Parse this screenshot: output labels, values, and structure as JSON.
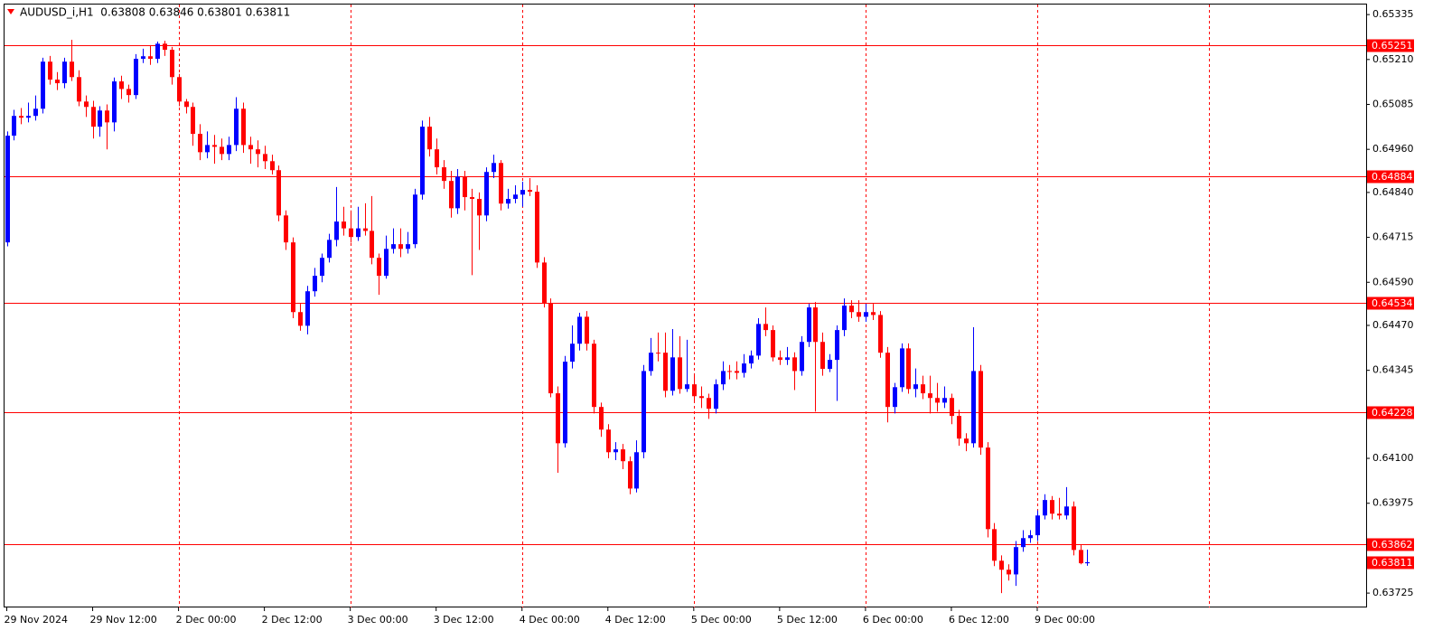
{
  "chart_data": {
    "type": "candlestick",
    "title": "AUDUSD_i,H1  0.63808 0.63846 0.63801 0.63811",
    "up_color": "#0000ff",
    "down_color": "#ff0000",
    "level_color": "#ff0000",
    "grid_color": "#ff0000",
    "ylim": [
      0.63685,
      0.65363
    ],
    "yticks": [
      0.65335,
      {
        "value": 0.6521,
        "label": "0.65210"
      },
      0.65085,
      {
        "value": 0.6496,
        "label": "0.64960"
      },
      {
        "value": 0.6484,
        "label": "0.64840"
      },
      0.64715,
      {
        "value": 0.6459,
        "label": "0.64590"
      },
      {
        "value": 0.6447,
        "label": "0.64470"
      },
      0.64345,
      {
        "value": 0.641,
        "label": "0.64100"
      },
      0.63975,
      0.63725
    ],
    "xticks": [
      {
        "value": 0,
        "label": "29 Nov 2024"
      },
      {
        "value": 12,
        "label": "29 Nov 12:00"
      },
      {
        "value": 24,
        "label": "2 Dec 00:00"
      },
      {
        "value": 36,
        "label": "2 Dec 12:00"
      },
      {
        "value": 48,
        "label": "3 Dec 00:00"
      },
      {
        "value": 60,
        "label": "3 Dec 12:00"
      },
      {
        "value": 72,
        "label": "4 Dec 00:00"
      },
      {
        "value": 84,
        "label": "4 Dec 12:00"
      },
      {
        "value": 96,
        "label": "5 Dec 00:00"
      },
      {
        "value": 108,
        "label": "5 Dec 12:00"
      },
      {
        "value": 120,
        "label": "6 Dec 00:00"
      },
      {
        "value": 132,
        "label": "6 Dec 12:00"
      },
      {
        "value": 144,
        "label": "9 Dec 00:00"
      }
    ],
    "levels": [
      0.65251,
      0.64884,
      0.64534,
      0.64228,
      0.63862
    ],
    "last_price": 0.63811,
    "ohlc": [
      [
        0.64701,
        0.6501,
        0.6469,
        0.64998
      ],
      [
        0.64998,
        0.6507,
        0.64985,
        0.65053
      ],
      [
        0.65053,
        0.65075,
        0.6503,
        0.65048
      ],
      [
        0.65048,
        0.6509,
        0.65035,
        0.65053
      ],
      [
        0.65053,
        0.6511,
        0.6504,
        0.65073
      ],
      [
        0.65073,
        0.65215,
        0.6506,
        0.65204
      ],
      [
        0.65204,
        0.6522,
        0.6514,
        0.65154
      ],
      [
        0.65154,
        0.65175,
        0.65125,
        0.65144
      ],
      [
        0.65144,
        0.65215,
        0.6513,
        0.65204
      ],
      [
        0.65204,
        0.65265,
        0.6515,
        0.65161
      ],
      [
        0.65161,
        0.6518,
        0.6508,
        0.65093
      ],
      [
        0.65093,
        0.6511,
        0.6505,
        0.65078
      ],
      [
        0.65078,
        0.65095,
        0.6499,
        0.65023
      ],
      [
        0.65023,
        0.6508,
        0.64995,
        0.65068
      ],
      [
        0.65068,
        0.65085,
        0.6496,
        0.65035
      ],
      [
        0.65035,
        0.6516,
        0.6501,
        0.65149
      ],
      [
        0.65149,
        0.65165,
        0.651,
        0.65128
      ],
      [
        0.65128,
        0.6514,
        0.6509,
        0.65111
      ],
      [
        0.65111,
        0.65225,
        0.651,
        0.65212
      ],
      [
        0.65212,
        0.6524,
        0.652,
        0.65219
      ],
      [
        0.65219,
        0.6525,
        0.65195,
        0.65212
      ],
      [
        0.65212,
        0.6526,
        0.652,
        0.65254
      ],
      [
        0.65254,
        0.65262,
        0.6522,
        0.65237
      ],
      [
        0.65237,
        0.65245,
        0.6514,
        0.65161
      ],
      [
        0.65161,
        0.6517,
        0.6508,
        0.65093
      ],
      [
        0.65093,
        0.651,
        0.6506,
        0.65078
      ],
      [
        0.65078,
        0.6509,
        0.6497,
        0.65003
      ],
      [
        0.65003,
        0.6503,
        0.6493,
        0.64952
      ],
      [
        0.64952,
        0.6501,
        0.64935,
        0.64972
      ],
      [
        0.64972,
        0.65,
        0.6492,
        0.64967
      ],
      [
        0.64967,
        0.6499,
        0.6493,
        0.64947
      ],
      [
        0.64947,
        0.64995,
        0.6493,
        0.64972
      ],
      [
        0.64972,
        0.65105,
        0.64955,
        0.65073
      ],
      [
        0.65073,
        0.6509,
        0.6495,
        0.64972
      ],
      [
        0.64972,
        0.64995,
        0.6492,
        0.6496
      ],
      [
        0.6496,
        0.64985,
        0.6491,
        0.64947
      ],
      [
        0.64947,
        0.6497,
        0.64905,
        0.64927
      ],
      [
        0.64927,
        0.64945,
        0.6489,
        0.64902
      ],
      [
        0.64902,
        0.64915,
        0.6476,
        0.64776
      ],
      [
        0.64776,
        0.6479,
        0.6468,
        0.64701
      ],
      [
        0.64701,
        0.64715,
        0.6449,
        0.64507
      ],
      [
        0.64507,
        0.6453,
        0.64455,
        0.64469
      ],
      [
        0.64469,
        0.6458,
        0.64445,
        0.64565
      ],
      [
        0.64565,
        0.6463,
        0.6455,
        0.64608
      ],
      [
        0.64608,
        0.6467,
        0.6459,
        0.64658
      ],
      [
        0.64658,
        0.64725,
        0.64645,
        0.64708
      ],
      [
        0.64708,
        0.64855,
        0.6469,
        0.64759
      ],
      [
        0.64759,
        0.648,
        0.6472,
        0.6474
      ],
      [
        0.6474,
        0.6479,
        0.647,
        0.64716
      ],
      [
        0.64716,
        0.648,
        0.64705,
        0.6474
      ],
      [
        0.6474,
        0.6481,
        0.6472,
        0.64733
      ],
      [
        0.64733,
        0.6483,
        0.6464,
        0.64658
      ],
      [
        0.64658,
        0.6467,
        0.64555,
        0.64608
      ],
      [
        0.64608,
        0.6472,
        0.646,
        0.64683
      ],
      [
        0.64683,
        0.6474,
        0.6467,
        0.64696
      ],
      [
        0.64696,
        0.6474,
        0.6466,
        0.64683
      ],
      [
        0.64683,
        0.6473,
        0.6467,
        0.64696
      ],
      [
        0.64696,
        0.6485,
        0.64685,
        0.64834
      ],
      [
        0.64834,
        0.6504,
        0.6482,
        0.65023
      ],
      [
        0.65023,
        0.6505,
        0.6494,
        0.6496
      ],
      [
        0.6496,
        0.6499,
        0.6489,
        0.6491
      ],
      [
        0.6491,
        0.6493,
        0.6485,
        0.64872
      ],
      [
        0.64872,
        0.649,
        0.6477,
        0.64796
      ],
      [
        0.64796,
        0.64905,
        0.6478,
        0.64884
      ],
      [
        0.64884,
        0.649,
        0.6479,
        0.64827
      ],
      [
        0.64827,
        0.6485,
        0.6461,
        0.64822
      ],
      [
        0.64822,
        0.6484,
        0.6468,
        0.64776
      ],
      [
        0.64776,
        0.6491,
        0.6476,
        0.64897
      ],
      [
        0.64897,
        0.64945,
        0.6488,
        0.64922
      ],
      [
        0.64922,
        0.6493,
        0.6479,
        0.64809
      ],
      [
        0.64809,
        0.6485,
        0.64795,
        0.64822
      ],
      [
        0.64822,
        0.6486,
        0.6481,
        0.64834
      ],
      [
        0.64834,
        0.6487,
        0.648,
        0.64847
      ],
      [
        0.64847,
        0.6488,
        0.6483,
        0.64842
      ],
      [
        0.64842,
        0.6486,
        0.6463,
        0.64645
      ],
      [
        0.64645,
        0.6466,
        0.6452,
        0.64532
      ],
      [
        0.64532,
        0.64545,
        0.6427,
        0.64281
      ],
      [
        0.64281,
        0.643,
        0.6406,
        0.64142
      ],
      [
        0.64142,
        0.64385,
        0.6413,
        0.64369
      ],
      [
        0.64369,
        0.6447,
        0.6435,
        0.64419
      ],
      [
        0.64419,
        0.64505,
        0.644,
        0.64494
      ],
      [
        0.64494,
        0.6451,
        0.644,
        0.64419
      ],
      [
        0.64419,
        0.6443,
        0.64225,
        0.64243
      ],
      [
        0.64243,
        0.64255,
        0.6416,
        0.6418
      ],
      [
        0.6418,
        0.64195,
        0.641,
        0.64117
      ],
      [
        0.64117,
        0.64145,
        0.64095,
        0.64125
      ],
      [
        0.64125,
        0.6414,
        0.6407,
        0.64092
      ],
      [
        0.64092,
        0.64105,
        0.64,
        0.64016
      ],
      [
        0.64016,
        0.6415,
        0.64005,
        0.64117
      ],
      [
        0.64117,
        0.6436,
        0.641,
        0.64343
      ],
      [
        0.64343,
        0.64435,
        0.6433,
        0.64394
      ],
      [
        0.64394,
        0.6445,
        0.6437,
        0.64394
      ],
      [
        0.64394,
        0.6445,
        0.6427,
        0.64288
      ],
      [
        0.64288,
        0.6446,
        0.64275,
        0.64381
      ],
      [
        0.64381,
        0.6444,
        0.6428,
        0.64293
      ],
      [
        0.64293,
        0.6443,
        0.64285,
        0.64306
      ],
      [
        0.64306,
        0.6433,
        0.6426,
        0.64273
      ],
      [
        0.64273,
        0.643,
        0.6424,
        0.64268
      ],
      [
        0.64268,
        0.6428,
        0.6421,
        0.64238
      ],
      [
        0.64238,
        0.6432,
        0.64225,
        0.64306
      ],
      [
        0.64306,
        0.6437,
        0.6429,
        0.64343
      ],
      [
        0.64343,
        0.6436,
        0.6432,
        0.64343
      ],
      [
        0.64343,
        0.6437,
        0.6432,
        0.64338
      ],
      [
        0.64338,
        0.6439,
        0.64325,
        0.64364
      ],
      [
        0.64364,
        0.644,
        0.6435,
        0.64386
      ],
      [
        0.64386,
        0.6449,
        0.64375,
        0.64474
      ],
      [
        0.64474,
        0.6452,
        0.6444,
        0.64457
      ],
      [
        0.64457,
        0.6447,
        0.6437,
        0.64381
      ],
      [
        0.64381,
        0.644,
        0.6436,
        0.64374
      ],
      [
        0.64374,
        0.6441,
        0.6436,
        0.64381
      ],
      [
        0.64381,
        0.64395,
        0.6429,
        0.64343
      ],
      [
        0.64343,
        0.6444,
        0.6433,
        0.64424
      ],
      [
        0.64424,
        0.6453,
        0.6441,
        0.6452
      ],
      [
        0.6452,
        0.64535,
        0.6423,
        0.64424
      ],
      [
        0.64424,
        0.6445,
        0.6433,
        0.64349
      ],
      [
        0.64349,
        0.6439,
        0.6434,
        0.64374
      ],
      [
        0.64374,
        0.6447,
        0.6426,
        0.64457
      ],
      [
        0.64457,
        0.64545,
        0.6444,
        0.64525
      ],
      [
        0.64525,
        0.6454,
        0.6449,
        0.64507
      ],
      [
        0.64507,
        0.6454,
        0.6448,
        0.64494
      ],
      [
        0.64494,
        0.6453,
        0.6448,
        0.64507
      ],
      [
        0.64507,
        0.6453,
        0.64485,
        0.64499
      ],
      [
        0.64499,
        0.6451,
        0.6438,
        0.64394
      ],
      [
        0.64394,
        0.6441,
        0.642,
        0.64243
      ],
      [
        0.64243,
        0.6431,
        0.64225,
        0.64298
      ],
      [
        0.64298,
        0.6442,
        0.64285,
        0.64406
      ],
      [
        0.64406,
        0.6442,
        0.6428,
        0.64293
      ],
      [
        0.64293,
        0.6435,
        0.6427,
        0.64306
      ],
      [
        0.64306,
        0.6433,
        0.64265,
        0.64281
      ],
      [
        0.64281,
        0.6433,
        0.64225,
        0.64268
      ],
      [
        0.64268,
        0.6431,
        0.6423,
        0.64255
      ],
      [
        0.64255,
        0.643,
        0.6424,
        0.64268
      ],
      [
        0.64268,
        0.6428,
        0.64195,
        0.64218
      ],
      [
        0.64218,
        0.64235,
        0.64135,
        0.64155
      ],
      [
        0.64155,
        0.6417,
        0.6412,
        0.64142
      ],
      [
        0.64142,
        0.64465,
        0.6413,
        0.64343
      ],
      [
        0.64343,
        0.6436,
        0.6411,
        0.6413
      ],
      [
        0.6413,
        0.64145,
        0.6388,
        0.63903
      ],
      [
        0.63903,
        0.6392,
        0.638,
        0.63815
      ],
      [
        0.63815,
        0.6383,
        0.63725,
        0.6379
      ],
      [
        0.6379,
        0.63805,
        0.6376,
        0.63777
      ],
      [
        0.63777,
        0.6387,
        0.63745,
        0.63853
      ],
      [
        0.63853,
        0.639,
        0.6384,
        0.63878
      ],
      [
        0.63878,
        0.639,
        0.63865,
        0.63886
      ],
      [
        0.63886,
        0.63955,
        0.6387,
        0.63941
      ],
      [
        0.63941,
        0.64,
        0.6393,
        0.63984
      ],
      [
        0.63984,
        0.63995,
        0.6393,
        0.63946
      ],
      [
        0.63946,
        0.6399,
        0.6393,
        0.63941
      ],
      [
        0.63941,
        0.6402,
        0.6393,
        0.63966
      ],
      [
        0.63966,
        0.6398,
        0.6383,
        0.63845
      ],
      [
        0.63845,
        0.6386,
        0.63805,
        0.63808
      ],
      [
        0.63808,
        0.63846,
        0.63801,
        0.63811
      ]
    ]
  }
}
